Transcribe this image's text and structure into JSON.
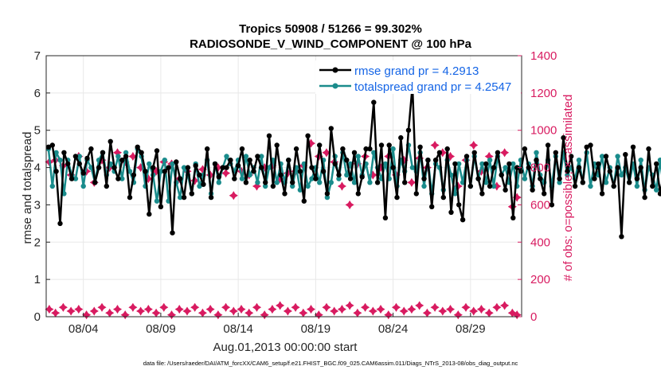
{
  "chart_data": {
    "type": "line",
    "title_line1": "Tropics 50908 / 51266 = 99.302%",
    "title_line2": "RADIOSONDE_V_WIND_COMPONENT @ 100 hPa",
    "xlabel": "Aug.01,2013 00:00:00 start",
    "ylabel_left": "rmse and totalspread",
    "ylabel_right": "# of obs: o=possible; ×=assimilated",
    "xlim": [
      1.6,
      32.3
    ],
    "ylim_left": [
      0,
      7
    ],
    "ylim_right": [
      0,
      1400
    ],
    "x_ticks": [
      4,
      9,
      14,
      19,
      24,
      29
    ],
    "x_tick_labels": [
      "08/04",
      "08/09",
      "08/14",
      "08/19",
      "08/24",
      "08/29"
    ],
    "y_ticks_left": [
      0,
      1,
      2,
      3,
      4,
      5,
      6,
      7
    ],
    "y_tick_labels_left": [
      "0",
      "1",
      "2",
      "3",
      "4",
      "5",
      "6",
      "7"
    ],
    "y_ticks_right": [
      0,
      200,
      400,
      600,
      800,
      1000,
      1200,
      1400
    ],
    "y_tick_labels_right": [
      "0",
      "200",
      "400",
      "600",
      "800",
      "1000",
      "1200",
      "1400"
    ],
    "grid": true,
    "legend_position": "top-right",
    "legend": [
      "rmse grand pr = 4.2913",
      "totalspread grand pr = 4.2547"
    ],
    "footer": "data file: /Users/raeder/DAI/ATM_forcXX/CAM6_setup/f.e21.FHIST_BGC.f09_025.CAM6assim.011/Diags_NTrS_2013-08/obs_diag_output.nc",
    "colors": {
      "rmse": "#000000",
      "spread": "#1a8c8c",
      "obs": "#d81b60",
      "legend_text": "#1565e6",
      "right_axis": "#d81b60",
      "grid": "#e8e8e8"
    },
    "x_start": 1.75,
    "x_step": 0.25,
    "rmse": [
      4.55,
      4.6,
      3.9,
      2.5,
      4.4,
      4.1,
      3.7,
      4.3,
      4.1,
      3.85,
      4.25,
      4.5,
      3.6,
      4.0,
      4.4,
      3.5,
      4.7,
      4.0,
      3.7,
      4.2,
      4.3,
      3.2,
      3.8,
      4.55,
      4.4,
      3.9,
      2.75,
      4.0,
      4.45,
      2.95,
      3.9,
      4.0,
      2.25,
      4.15,
      3.7,
      3.2,
      4.0,
      3.3,
      4.05,
      3.8,
      3.55,
      4.5,
      3.2,
      4.1,
      3.75,
      4.0,
      4.0,
      4.2,
      3.7,
      4.05,
      4.5,
      3.6,
      4.2,
      3.9,
      4.3,
      4.0,
      3.6,
      4.85,
      3.5,
      4.6,
      3.8,
      3.3,
      4.2,
      3.6,
      4.5,
      3.9,
      3.1,
      4.85,
      4.0,
      3.7,
      4.6,
      3.9,
      3.3,
      5.05,
      4.1,
      3.8,
      4.5,
      4.2,
      3.7,
      4.4,
      3.3,
      3.75,
      4.5,
      4.5,
      5.75,
      3.6,
      4.6,
      2.65,
      4.6,
      4.0,
      3.2,
      4.8,
      3.6,
      5.0,
      6.2,
      3.3,
      4.55,
      3.7,
      4.2,
      2.95,
      4.2,
      4.4,
      3.2,
      4.5,
      2.8,
      4.1,
      3.0,
      2.6,
      4.3,
      3.5,
      4.4,
      3.7,
      3.3,
      4.1,
      3.5,
      4.0,
      4.4,
      3.8,
      3.4,
      4.1,
      2.65,
      4.0,
      3.9,
      4.5,
      4.0,
      3.4,
      4.2,
      3.7,
      3.3,
      4.6,
      3.0,
      4.4,
      3.7,
      4.8,
      3.9,
      4.3,
      3.5,
      4.0,
      3.6,
      4.55,
      4.6,
      3.7,
      4.1,
      3.3,
      4.3,
      3.9,
      3.5,
      4.0,
      2.15,
      4.35,
      3.6,
      4.55,
      3.7,
      4.0,
      3.2,
      4.5,
      3.5,
      4.1,
      3.3,
      3.9,
      4.6,
      3.3,
      4.3,
      3.4,
      3.5,
      4.2,
      3.1,
      4.5,
      3.8,
      3.05
    ],
    "spread": [
      4.5,
      3.5,
      4.4,
      4.2,
      3.3,
      4.2,
      3.8,
      3.7,
      4.3,
      3.5,
      4.2,
      4.0,
      3.6,
      4.2,
      4.4,
      3.8,
      4.1,
      3.9,
      4.3,
      3.7,
      4.4,
      3.9,
      3.6,
      4.5,
      4.3,
      3.5,
      4.1,
      3.8,
      3.1,
      3.9,
      4.2,
      3.1,
      4.1,
      3.6,
      3.2,
      4.0,
      3.8,
      3.3,
      4.1,
      3.5,
      3.8,
      4.2,
      3.3,
      4.1,
      3.6,
      4.0,
      4.3,
      4.1,
      3.9,
      4.2,
      3.7,
      4.3,
      3.8,
      4.0,
      3.6,
      4.3,
      3.5,
      4.0,
      4.2,
      3.6,
      4.1,
      3.6,
      4.2,
      3.5,
      4.0,
      3.4,
      4.1,
      3.5,
      3.7,
      4.0,
      3.6,
      4.2,
      3.2,
      3.6,
      4.3,
      3.7,
      4.4,
      3.8,
      4.1,
      3.6,
      4.3,
      3.8,
      4.1,
      3.6,
      4.4,
      4.0,
      3.7,
      4.1,
      3.7,
      4.5,
      3.5,
      4.2,
      3.9,
      4.6,
      4.0,
      3.9,
      4.4,
      3.5,
      4.2,
      3.3,
      4.1,
      4.0,
      3.4,
      4.2,
      3.8,
      3.3,
      4.1,
      3.6,
      4.2,
      3.5,
      4.3,
      3.7,
      4.1,
      3.6,
      4.2,
      3.5,
      4.3,
      3.8,
      4.0,
      3.6,
      4.1,
      3.5,
      4.2,
      3.7,
      4.1,
      3.5,
      4.4,
      3.8,
      3.6,
      4.2,
      3.5,
      4.3,
      3.6,
      4.4,
      3.8,
      4.0,
      3.7,
      4.2,
      3.6,
      4.4,
      3.5,
      4.1,
      3.8,
      4.3,
      3.6,
      4.0,
      3.5,
      4.3,
      3.8,
      4.0,
      3.6,
      4.1,
      3.5,
      4.2,
      3.4,
      4.0,
      3.8,
      3.4,
      4.2,
      3.3,
      4.0,
      3.5,
      4.3,
      3.4,
      4.0,
      3.3,
      4.4,
      3.5
    ],
    "obs_times": [
      1.8,
      2.2,
      2.7,
      3.2,
      3.7,
      4.2,
      4.7,
      5.2,
      5.7,
      6.2,
      6.7,
      7.2,
      7.7,
      8.2,
      8.7,
      9.2,
      9.7,
      10.2,
      10.7,
      11.2,
      11.7,
      12.2,
      12.7,
      13.2,
      13.7,
      14.2,
      14.7,
      15.2,
      15.7,
      16.2,
      16.7,
      17.2,
      17.7,
      18.2,
      18.7,
      19.2,
      19.7,
      20.2,
      20.7,
      21.2,
      21.7,
      22.2,
      22.7,
      23.2,
      23.7,
      24.2,
      24.7,
      25.2,
      25.7,
      26.2,
      26.7,
      27.2,
      27.7,
      28.2,
      28.7,
      29.2,
      29.7,
      30.2,
      30.7,
      31.2,
      31.7,
      32.0
    ],
    "obs_assimilated": [
      830,
      840,
      810,
      760,
      860,
      780,
      720,
      840,
      800,
      880,
      830,
      860,
      800,
      740,
      780,
      830,
      820,
      740,
      780,
      730,
      790,
      760,
      800,
      770,
      650,
      780,
      760,
      700,
      800,
      810,
      740,
      770,
      780,
      810,
      930,
      860,
      880,
      830,
      700,
      600,
      820,
      860,
      760,
      800,
      860,
      760,
      840,
      720,
      850,
      800,
      920,
      880,
      860,
      700,
      840,
      920,
      780,
      860,
      700,
      880,
      590,
      640
    ],
    "obs_possible": [
      40,
      20,
      50,
      30,
      40,
      10,
      30,
      50,
      20,
      40,
      10,
      50,
      30,
      40,
      20,
      50,
      10,
      40,
      30,
      50,
      20,
      40,
      10,
      50,
      30,
      40,
      20,
      50,
      10,
      40,
      60,
      30,
      50,
      20,
      40,
      10,
      50,
      30,
      40,
      60,
      20,
      50,
      30,
      40,
      10,
      50,
      30,
      40,
      60,
      20,
      50,
      30,
      40,
      10,
      50,
      30,
      40,
      20,
      50,
      60,
      20,
      10
    ]
  }
}
